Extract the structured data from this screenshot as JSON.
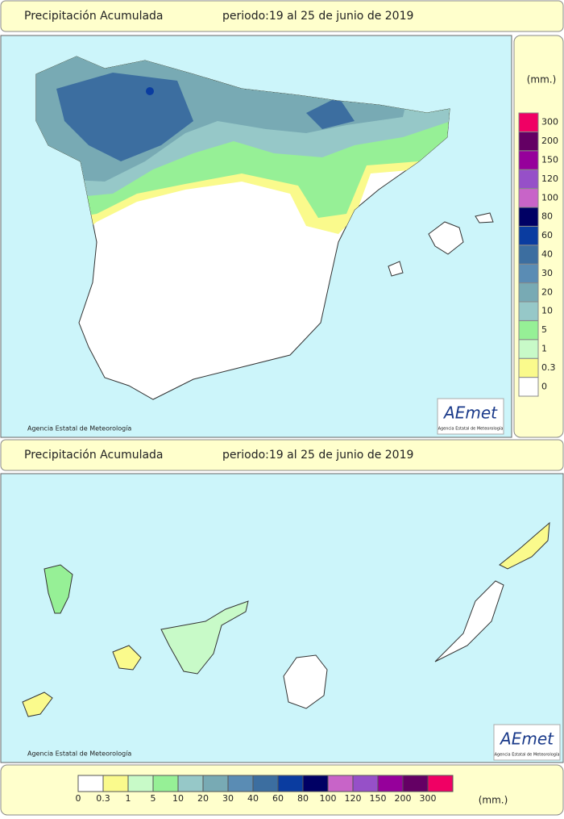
{
  "header": {
    "title": "Precipitación Acumulada",
    "period": "periodo:19 al 25 de junio de 2019"
  },
  "peninsula": {
    "credit": "Agencia Estatal de Meteorología",
    "logo": "AEmet",
    "logo_sub": "Agencia Estatal de Meteorología"
  },
  "canarias": {
    "title": "Precipitación Acumulada",
    "period": "periodo:19 al 25 de junio de 2019",
    "credit": "Agencia Estatal de Meteorología",
    "logo": "AEmet",
    "logo_sub": "Agencia Estatal de Meteorología"
  },
  "legend": {
    "unit": "(mm.)",
    "bottom_unit": "(mm.)",
    "levels": [
      {
        "label": "0",
        "color": "#ffffff"
      },
      {
        "label": "0.3",
        "color": "#fafa8c"
      },
      {
        "label": "1",
        "color": "#c8fac8"
      },
      {
        "label": "5",
        "color": "#96f096"
      },
      {
        "label": "10",
        "color": "#96c8c8"
      },
      {
        "label": "20",
        "color": "#78aab4"
      },
      {
        "label": "30",
        "color": "#5a8cb4"
      },
      {
        "label": "40",
        "color": "#3c6ea0"
      },
      {
        "label": "60",
        "color": "#0a3ca0"
      },
      {
        "label": "80",
        "color": "#000064"
      },
      {
        "label": "100",
        "color": "#c864c8"
      },
      {
        "label": "120",
        "color": "#9650c8"
      },
      {
        "label": "150",
        "color": "#96009b"
      },
      {
        "label": "200",
        "color": "#640064"
      },
      {
        "label": "300",
        "color": "#f00064"
      }
    ]
  }
}
